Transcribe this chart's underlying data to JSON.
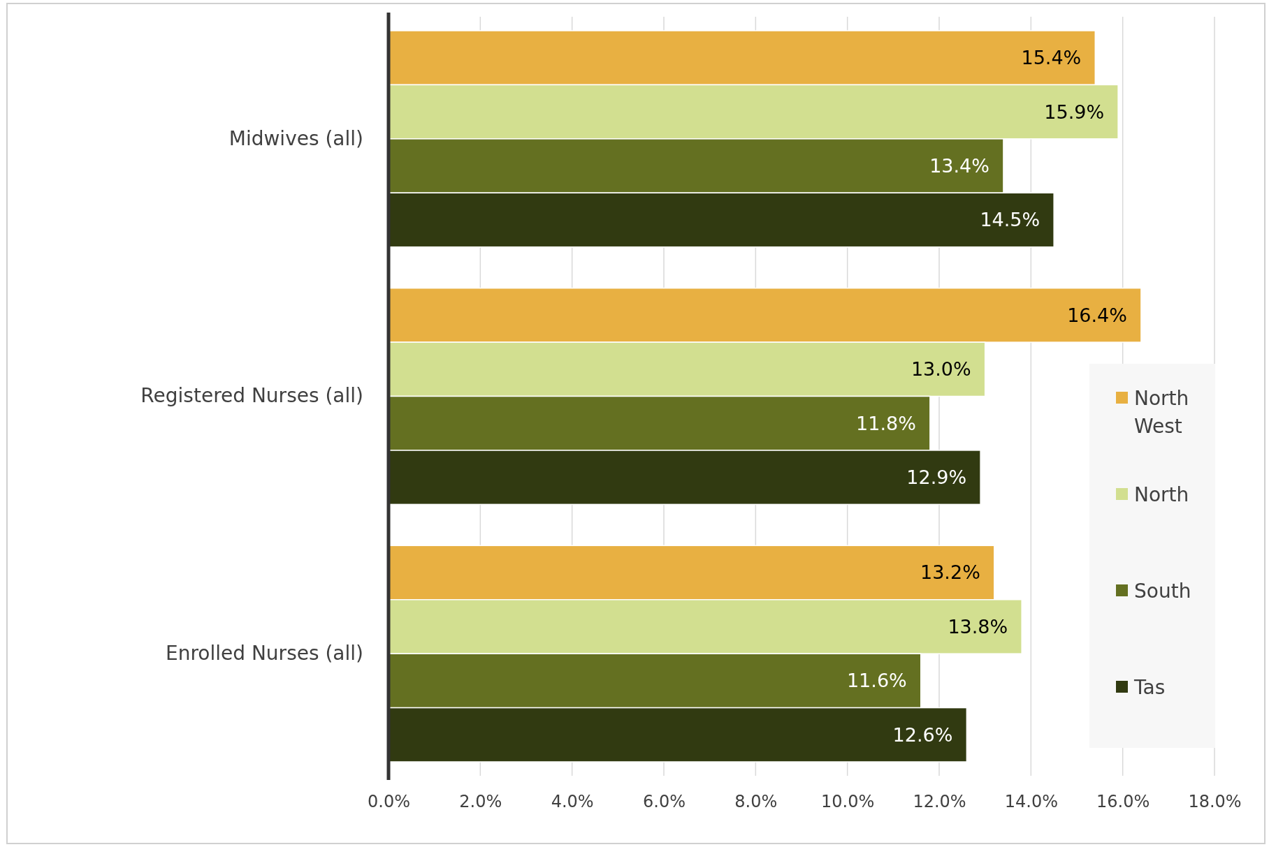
{
  "chart_data": {
    "type": "bar",
    "orientation": "horizontal",
    "categories": [
      "Midwives (all)",
      "Registered Nurses (all)",
      "Enrolled Nurses (all)"
    ],
    "series": [
      {
        "name": "North West",
        "color": "#e8b042",
        "values": [
          15.4,
          16.4,
          13.2
        ],
        "value_labels": [
          "15.4%",
          "16.4%",
          "13.2%"
        ]
      },
      {
        "name": "North",
        "color": "#d2df90",
        "values": [
          15.9,
          13.0,
          13.8
        ],
        "value_labels": [
          "15.9%",
          "13.0%",
          "13.8%"
        ]
      },
      {
        "name": "South",
        "color": "#647021",
        "values": [
          13.4,
          11.8,
          11.6
        ],
        "value_labels": [
          "13.4%",
          "11.8%",
          "11.6%"
        ]
      },
      {
        "name": "Tas",
        "color": "#313a11",
        "values": [
          14.5,
          12.9,
          12.6
        ],
        "value_labels": [
          "14.5%",
          "12.9%",
          "12.6%"
        ]
      }
    ],
    "xlim": [
      0,
      18
    ],
    "xticks": [
      {
        "value": 0,
        "label": "0.0%"
      },
      {
        "value": 2,
        "label": "2.0%"
      },
      {
        "value": 4,
        "label": "4.0%"
      },
      {
        "value": 6,
        "label": "6.0%"
      },
      {
        "value": 8,
        "label": "8.0%"
      },
      {
        "value": 10,
        "label": "10.0%"
      },
      {
        "value": 12,
        "label": "12.0%"
      },
      {
        "value": 14,
        "label": "14.0%"
      },
      {
        "value": 16,
        "label": "16.0%"
      },
      {
        "value": 18,
        "label": "18.0%"
      }
    ],
    "grid": "x",
    "legend": "right"
  }
}
